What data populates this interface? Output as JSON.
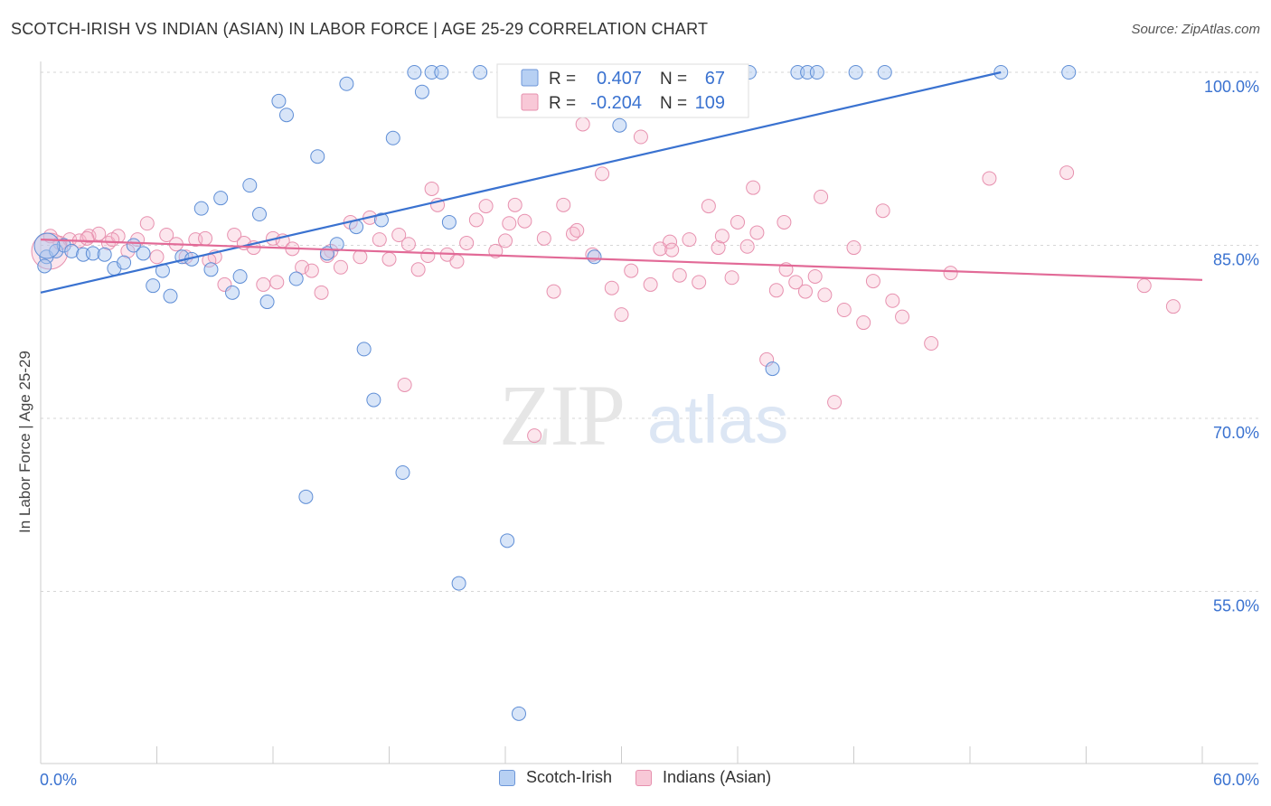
{
  "title": "SCOTCH-IRISH VS INDIAN (ASIAN) IN LABOR FORCE | AGE 25-29 CORRELATION CHART",
  "source": "Source: ZipAtlas.com",
  "watermark": {
    "zip": "ZIP",
    "atlas": "atlas"
  },
  "legend_top": [
    {
      "r_label": "R =",
      "r_value": "0.407",
      "n_label": "N =",
      "n_value": "67"
    },
    {
      "r_label": "R =",
      "r_value": "-0.204",
      "n_label": "N =",
      "n_value": "109"
    }
  ],
  "legend_bottom": [
    "Scotch-Irish",
    "Indians (Asian)"
  ],
  "colors": {
    "blue": "#3a72d0",
    "blue_fill": "#a9c5f0",
    "pink": "#e26a97",
    "pink_fill": "#f5b8cc",
    "axis_text": "#3a72d0"
  },
  "chart_data": {
    "type": "scatter",
    "xlabel": "",
    "ylabel": "In Labor Force | Age 25-29",
    "xlim": [
      0,
      60
    ],
    "ylim": [
      40,
      101
    ],
    "x_tick_labels": [
      "0.0%",
      "60.0%"
    ],
    "y_tick_labels": [
      "100.0%",
      "85.0%",
      "70.0%",
      "55.0%"
    ],
    "y_ticks": [
      100,
      85,
      70,
      55
    ],
    "grid": "horizontal dashed",
    "series": [
      {
        "name": "Scotch-Irish",
        "color": "#3a72d0",
        "trend": {
          "x": [
            0,
            49.6
          ],
          "y": [
            80.9,
            100
          ]
        },
        "points": [
          [
            0.3,
            84.0
          ],
          [
            0.8,
            84.5
          ],
          [
            1.2,
            85.0
          ],
          [
            1.6,
            84.5
          ],
          [
            2.2,
            84.2
          ],
          [
            2.7,
            84.3
          ],
          [
            3.3,
            84.2
          ],
          [
            3.8,
            83.0
          ],
          [
            4.3,
            83.5
          ],
          [
            4.8,
            85.0
          ],
          [
            5.3,
            84.3
          ],
          [
            5.8,
            81.5
          ],
          [
            6.3,
            82.8
          ],
          [
            6.7,
            80.6
          ],
          [
            7.3,
            84.0
          ],
          [
            7.8,
            83.8
          ],
          [
            8.3,
            88.2
          ],
          [
            8.8,
            82.9
          ],
          [
            9.3,
            89.1
          ],
          [
            9.9,
            80.9
          ],
          [
            10.3,
            82.3
          ],
          [
            10.8,
            90.2
          ],
          [
            11.3,
            87.7
          ],
          [
            11.7,
            80.1
          ],
          [
            12.3,
            97.5
          ],
          [
            12.7,
            96.3
          ],
          [
            13.2,
            82.1
          ],
          [
            13.7,
            63.2
          ],
          [
            14.3,
            92.7
          ],
          [
            14.8,
            84.3
          ],
          [
            15.3,
            85.1
          ],
          [
            15.8,
            99.0
          ],
          [
            16.3,
            86.6
          ],
          [
            16.7,
            76.0
          ],
          [
            17.2,
            71.6
          ],
          [
            17.6,
            87.2
          ],
          [
            18.2,
            94.3
          ],
          [
            18.7,
            65.3
          ],
          [
            19.3,
            100.0
          ],
          [
            19.7,
            98.3
          ],
          [
            20.2,
            100.0
          ],
          [
            20.7,
            100.0
          ],
          [
            21.1,
            87.0
          ],
          [
            21.6,
            55.7
          ],
          [
            22.7,
            100.0
          ],
          [
            24.1,
            59.4
          ],
          [
            24.7,
            44.4
          ],
          [
            27.1,
            100.0
          ],
          [
            27.6,
            100.0
          ],
          [
            28.1,
            100.0
          ],
          [
            28.6,
            84.0
          ],
          [
            29.3,
            100.0
          ],
          [
            29.9,
            95.4
          ],
          [
            31.1,
            100.0
          ],
          [
            34.1,
            100.0
          ],
          [
            35.6,
            100.0
          ],
          [
            36.6,
            100.0
          ],
          [
            37.8,
            74.3
          ],
          [
            39.1,
            100.0
          ],
          [
            39.6,
            100.0
          ],
          [
            40.1,
            100.0
          ],
          [
            42.1,
            100.0
          ],
          [
            43.6,
            100.0
          ],
          [
            49.6,
            100.0
          ],
          [
            53.1,
            100.0
          ],
          [
            26.0,
            100.0
          ],
          [
            0.2,
            83.2
          ]
        ]
      },
      {
        "name": "Indians (Asian)",
        "color": "#e26a97",
        "trend": {
          "x": [
            0,
            60
          ],
          "y": [
            85.5,
            82.0
          ]
        },
        "points": [
          [
            0.5,
            85.8
          ],
          [
            1.0,
            85.2
          ],
          [
            1.5,
            85.5
          ],
          [
            2.0,
            85.4
          ],
          [
            2.5,
            85.8
          ],
          [
            3.0,
            86.0
          ],
          [
            3.5,
            85.2
          ],
          [
            4.0,
            85.8
          ],
          [
            4.5,
            84.5
          ],
          [
            5.0,
            85.5
          ],
          [
            5.5,
            86.9
          ],
          [
            6.0,
            84.0
          ],
          [
            6.5,
            85.9
          ],
          [
            7.0,
            85.1
          ],
          [
            7.5,
            84.0
          ],
          [
            8.0,
            85.5
          ],
          [
            8.5,
            85.6
          ],
          [
            9.0,
            84.0
          ],
          [
            9.5,
            81.6
          ],
          [
            10.0,
            85.9
          ],
          [
            10.5,
            85.2
          ],
          [
            11.0,
            84.8
          ],
          [
            11.5,
            81.6
          ],
          [
            12.0,
            85.6
          ],
          [
            12.5,
            85.4
          ],
          [
            13.0,
            84.7
          ],
          [
            13.5,
            83.1
          ],
          [
            14.0,
            82.8
          ],
          [
            14.5,
            80.9
          ],
          [
            15.0,
            84.5
          ],
          [
            15.5,
            83.1
          ],
          [
            16.0,
            87.0
          ],
          [
            16.5,
            84.0
          ],
          [
            17.0,
            87.4
          ],
          [
            17.5,
            85.5
          ],
          [
            18.0,
            83.8
          ],
          [
            18.5,
            85.9
          ],
          [
            19.0,
            85.1
          ],
          [
            19.5,
            82.9
          ],
          [
            20.0,
            84.1
          ],
          [
            20.5,
            88.5
          ],
          [
            21.0,
            84.2
          ],
          [
            21.5,
            83.6
          ],
          [
            22.0,
            85.2
          ],
          [
            22.5,
            87.2
          ],
          [
            23.0,
            88.4
          ],
          [
            23.5,
            84.5
          ],
          [
            24.0,
            85.4
          ],
          [
            24.5,
            88.5
          ],
          [
            25.0,
            87.1
          ],
          [
            25.5,
            68.5
          ],
          [
            26.0,
            85.6
          ],
          [
            26.5,
            81.0
          ],
          [
            27.0,
            88.5
          ],
          [
            27.5,
            86.0
          ],
          [
            28.0,
            95.5
          ],
          [
            28.5,
            84.2
          ],
          [
            29.0,
            91.2
          ],
          [
            29.5,
            81.3
          ],
          [
            30.0,
            79.0
          ],
          [
            30.5,
            82.8
          ],
          [
            31.0,
            94.4
          ],
          [
            31.5,
            81.6
          ],
          [
            32.0,
            84.7
          ],
          [
            32.5,
            85.3
          ],
          [
            33.0,
            82.4
          ],
          [
            33.5,
            85.5
          ],
          [
            34.0,
            81.8
          ],
          [
            34.5,
            88.4
          ],
          [
            35.0,
            84.8
          ],
          [
            36.0,
            87.0
          ],
          [
            36.5,
            84.9
          ],
          [
            37.0,
            86.1
          ],
          [
            37.5,
            75.1
          ],
          [
            38.0,
            81.1
          ],
          [
            38.5,
            82.9
          ],
          [
            39.0,
            81.8
          ],
          [
            39.5,
            81.0
          ],
          [
            40.0,
            82.3
          ],
          [
            40.5,
            80.7
          ],
          [
            41.0,
            71.4
          ],
          [
            41.5,
            79.4
          ],
          [
            42.0,
            84.8
          ],
          [
            42.5,
            78.3
          ],
          [
            43.0,
            81.9
          ],
          [
            43.5,
            88.0
          ],
          [
            44.0,
            80.2
          ],
          [
            44.5,
            78.8
          ],
          [
            46.0,
            76.5
          ],
          [
            47.0,
            82.6
          ],
          [
            49.0,
            90.8
          ],
          [
            53.0,
            91.3
          ],
          [
            57.0,
            81.5
          ],
          [
            58.5,
            79.7
          ],
          [
            18.8,
            72.9
          ],
          [
            12.2,
            81.8
          ],
          [
            20.2,
            89.9
          ],
          [
            8.7,
            83.7
          ],
          [
            3.7,
            85.5
          ],
          [
            2.4,
            85.6
          ],
          [
            24.2,
            86.9
          ],
          [
            32.6,
            84.6
          ],
          [
            35.2,
            85.8
          ],
          [
            38.4,
            87.0
          ],
          [
            14.8,
            84.1
          ],
          [
            27.7,
            86.3
          ],
          [
            40.3,
            89.2
          ],
          [
            35.7,
            82.2
          ],
          [
            36.8,
            90.0
          ]
        ]
      }
    ]
  }
}
